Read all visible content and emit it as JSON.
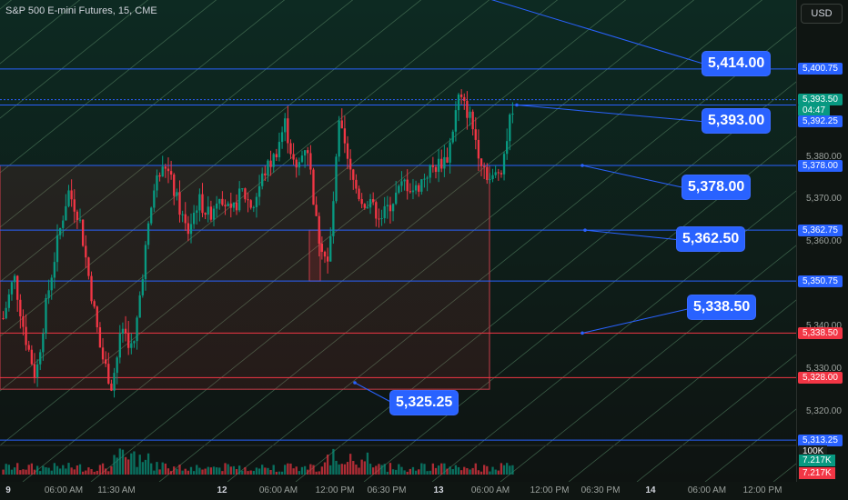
{
  "header": {
    "title": "S&P 500 E-mini Futures, 15, CME",
    "currency": "USD"
  },
  "price_axis": {
    "ticks": [
      "5,380.00",
      "5,370.00",
      "5,360.00",
      "5,340.00",
      "5,330.00",
      "5,320.00"
    ],
    "tags": [
      {
        "text": "5,400.75",
        "color": "#2962ff",
        "price": 5400.75
      },
      {
        "text": "5,393.50",
        "color": "#089981",
        "price": 5393.5
      },
      {
        "text": "04:47",
        "color": "#089981",
        "price": 5391.0
      },
      {
        "text": "5,392.25",
        "color": "#2962ff",
        "price": 5388.5
      },
      {
        "text": "5,378.00",
        "color": "#2962ff",
        "price": 5378.0
      },
      {
        "text": "5,362.75",
        "color": "#2962ff",
        "price": 5362.75
      },
      {
        "text": "5,350.75",
        "color": "#2962ff",
        "price": 5350.75
      },
      {
        "text": "5,338.50",
        "color": "#f23645",
        "price": 5338.5
      },
      {
        "text": "5,328.00",
        "color": "#f23645",
        "price": 5328.0
      },
      {
        "text": "5,313.25",
        "color": "#2962ff",
        "price": 5313.25
      }
    ],
    "volume_tags": [
      {
        "text": "100K",
        "color": "#1a201d"
      },
      {
        "text": "7.217K",
        "color": "#089981"
      },
      {
        "text": "7.217K",
        "color": "#f23645"
      }
    ]
  },
  "time_axis": [
    {
      "text": "9",
      "bold": true
    },
    {
      "text": "06:00 AM",
      "bold": false
    },
    {
      "text": "11:30 AM",
      "bold": false
    },
    {
      "text": "12",
      "bold": true
    },
    {
      "text": "06:00 AM",
      "bold": false
    },
    {
      "text": "12:00 PM",
      "bold": false
    },
    {
      "text": "06:30 PM",
      "bold": false
    },
    {
      "text": "13",
      "bold": true
    },
    {
      "text": "06:00 AM",
      "bold": false
    },
    {
      "text": "12:00 PM",
      "bold": false
    },
    {
      "text": "06:30 PM",
      "bold": false
    },
    {
      "text": "14",
      "bold": true
    },
    {
      "text": "06:00 AM",
      "bold": false
    },
    {
      "text": "12:00 PM",
      "bold": false
    }
  ],
  "callouts": [
    "5,414.00",
    "5,393.00",
    "5,378.00",
    "5,362.50",
    "5,338.50",
    "5,325.25"
  ],
  "chart_data": {
    "type": "candlestick",
    "symbol": "S&P 500 E-mini Futures",
    "interval": "15",
    "exchange": "CME",
    "ylim": [
      5312,
      5417
    ],
    "horizontal_levels": [
      5400.75,
      5393.5,
      5392.25,
      5378.0,
      5362.75,
      5350.75,
      5338.5,
      5328.0,
      5313.25
    ],
    "annotations": [
      5414.0,
      5393.0,
      5378.0,
      5362.5,
      5338.5,
      5325.25
    ],
    "close_path": [
      5342,
      5352,
      5338,
      5328,
      5346,
      5360,
      5372,
      5366,
      5350,
      5334,
      5326,
      5340,
      5334,
      5356,
      5374,
      5378,
      5370,
      5362,
      5370,
      5366,
      5372,
      5366,
      5372,
      5368,
      5376,
      5380,
      5388,
      5376,
      5384,
      5362,
      5354,
      5388,
      5376,
      5370,
      5368,
      5366,
      5370,
      5374,
      5372,
      5376,
      5378,
      5380,
      5394,
      5390,
      5380,
      5374,
      5378,
      5392
    ]
  }
}
